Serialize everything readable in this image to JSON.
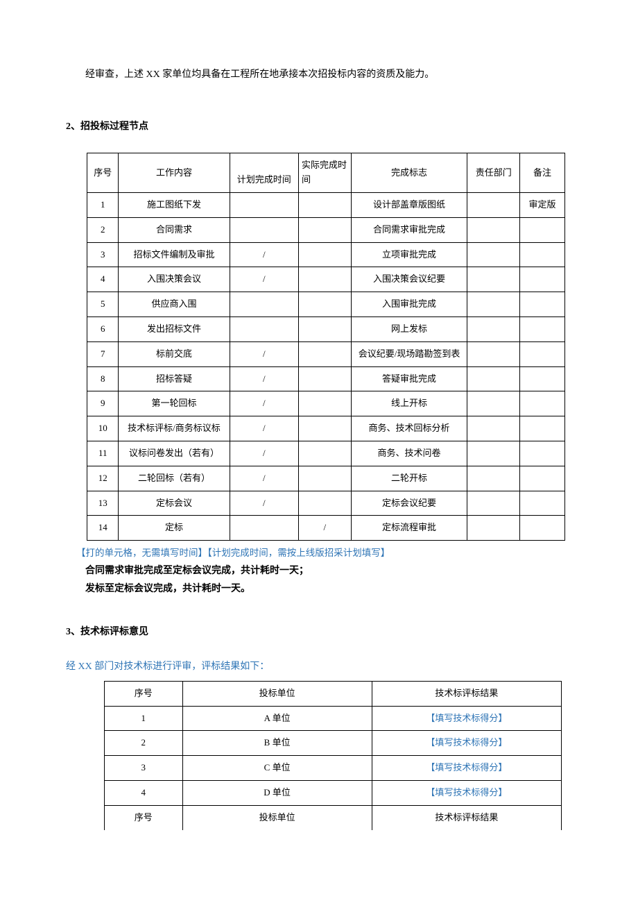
{
  "colors": {
    "text_black": "#000000",
    "text_blue": "#2e74b5",
    "border": "#000000",
    "background": "#ffffff"
  },
  "intro": "经审查，上述 XX 家单位均具备在工程所在地承接本次招投标内容的资质及能力。",
  "section2": {
    "title": "2、招投标过程节点",
    "headers": {
      "seq": "序号",
      "work": "工作内容",
      "plan": "计划完成时间",
      "actual": "实际完成时间",
      "mark": "完成标志",
      "dept": "责任部门",
      "note": "备注"
    },
    "rows": [
      {
        "seq": "1",
        "work": "施工图纸下发",
        "plan": "",
        "actual": "",
        "mark": "设计部盖章版图纸",
        "dept": "",
        "note": "审定版"
      },
      {
        "seq": "2",
        "work": "合同需求",
        "plan": "",
        "actual": "",
        "mark": "合同需求审批完成",
        "dept": "",
        "note": ""
      },
      {
        "seq": "3",
        "work": "招标文件编制及审批",
        "plan": "/",
        "actual": "",
        "mark": "立项审批完成",
        "dept": "",
        "note": ""
      },
      {
        "seq": "4",
        "work": "入围决策会议",
        "plan": "/",
        "actual": "",
        "mark": "入围决策会议纪要",
        "dept": "",
        "note": ""
      },
      {
        "seq": "5",
        "work": "供应商入围",
        "plan": "",
        "actual": "",
        "mark": "入围审批完成",
        "dept": "",
        "note": ""
      },
      {
        "seq": "6",
        "work": "发出招标文件",
        "plan": "",
        "actual": "",
        "mark": "网上发标",
        "dept": "",
        "note": ""
      },
      {
        "seq": "7",
        "work": "标前交底",
        "plan": "/",
        "actual": "",
        "mark": "会议纪要/现场踏勘签到表",
        "dept": "",
        "note": ""
      },
      {
        "seq": "8",
        "work": "招标答疑",
        "plan": "/",
        "actual": "",
        "mark": "答疑审批完成",
        "dept": "",
        "note": ""
      },
      {
        "seq": "9",
        "work": "第一轮回标",
        "plan": "/",
        "actual": "",
        "mark": "线上开标",
        "dept": "",
        "note": ""
      },
      {
        "seq": "10",
        "work": "技术标评标/商务标议标",
        "plan": "/",
        "actual": "",
        "mark": "商务、技术回标分析",
        "dept": "",
        "note": ""
      },
      {
        "seq": "11",
        "work": "议标问卷发出（若有）",
        "plan": "/",
        "actual": "",
        "mark": "商务、技术问卷",
        "dept": "",
        "note": ""
      },
      {
        "seq": "12",
        "work": "二轮回标（若有）",
        "plan": "/",
        "actual": "",
        "mark": "二轮开标",
        "dept": "",
        "note": ""
      },
      {
        "seq": "13",
        "work": "定标会议",
        "plan": "/",
        "actual": "",
        "mark": "定标会议纪要",
        "dept": "",
        "note": ""
      },
      {
        "seq": "14",
        "work": "定标",
        "plan": "",
        "actual": "/",
        "mark": "定标流程审批",
        "dept": "",
        "note": ""
      }
    ],
    "note": "【打的单元格，无需填写时间】【计划完成时间，需按上线版招采计划填写】",
    "summary1": "合同需求审批完成至定标会议完成，共计耗时一天；",
    "summary2": "发标至定标会议完成，共计耗时一天。"
  },
  "section3": {
    "title": "3、技术标评标意见",
    "intro": "经 XX 部门对技术标进行评审，评标结果如下：",
    "headers": {
      "seq": "序号",
      "unit": "投标单位",
      "result": "技术标评标结果"
    },
    "rows": [
      {
        "seq": "1",
        "unit": "A 单位",
        "result": "【填写技术标得分】"
      },
      {
        "seq": "2",
        "unit": "B 单位",
        "result": "【填写技术标得分】"
      },
      {
        "seq": "3",
        "unit": "C 单位",
        "result": "【填写技术标得分】"
      },
      {
        "seq": "4",
        "unit": "D 单位",
        "result": "【填写技术标得分】"
      }
    ],
    "footer": {
      "seq": "序号",
      "unit": "投标单位",
      "result": "技术标评标结果"
    }
  }
}
